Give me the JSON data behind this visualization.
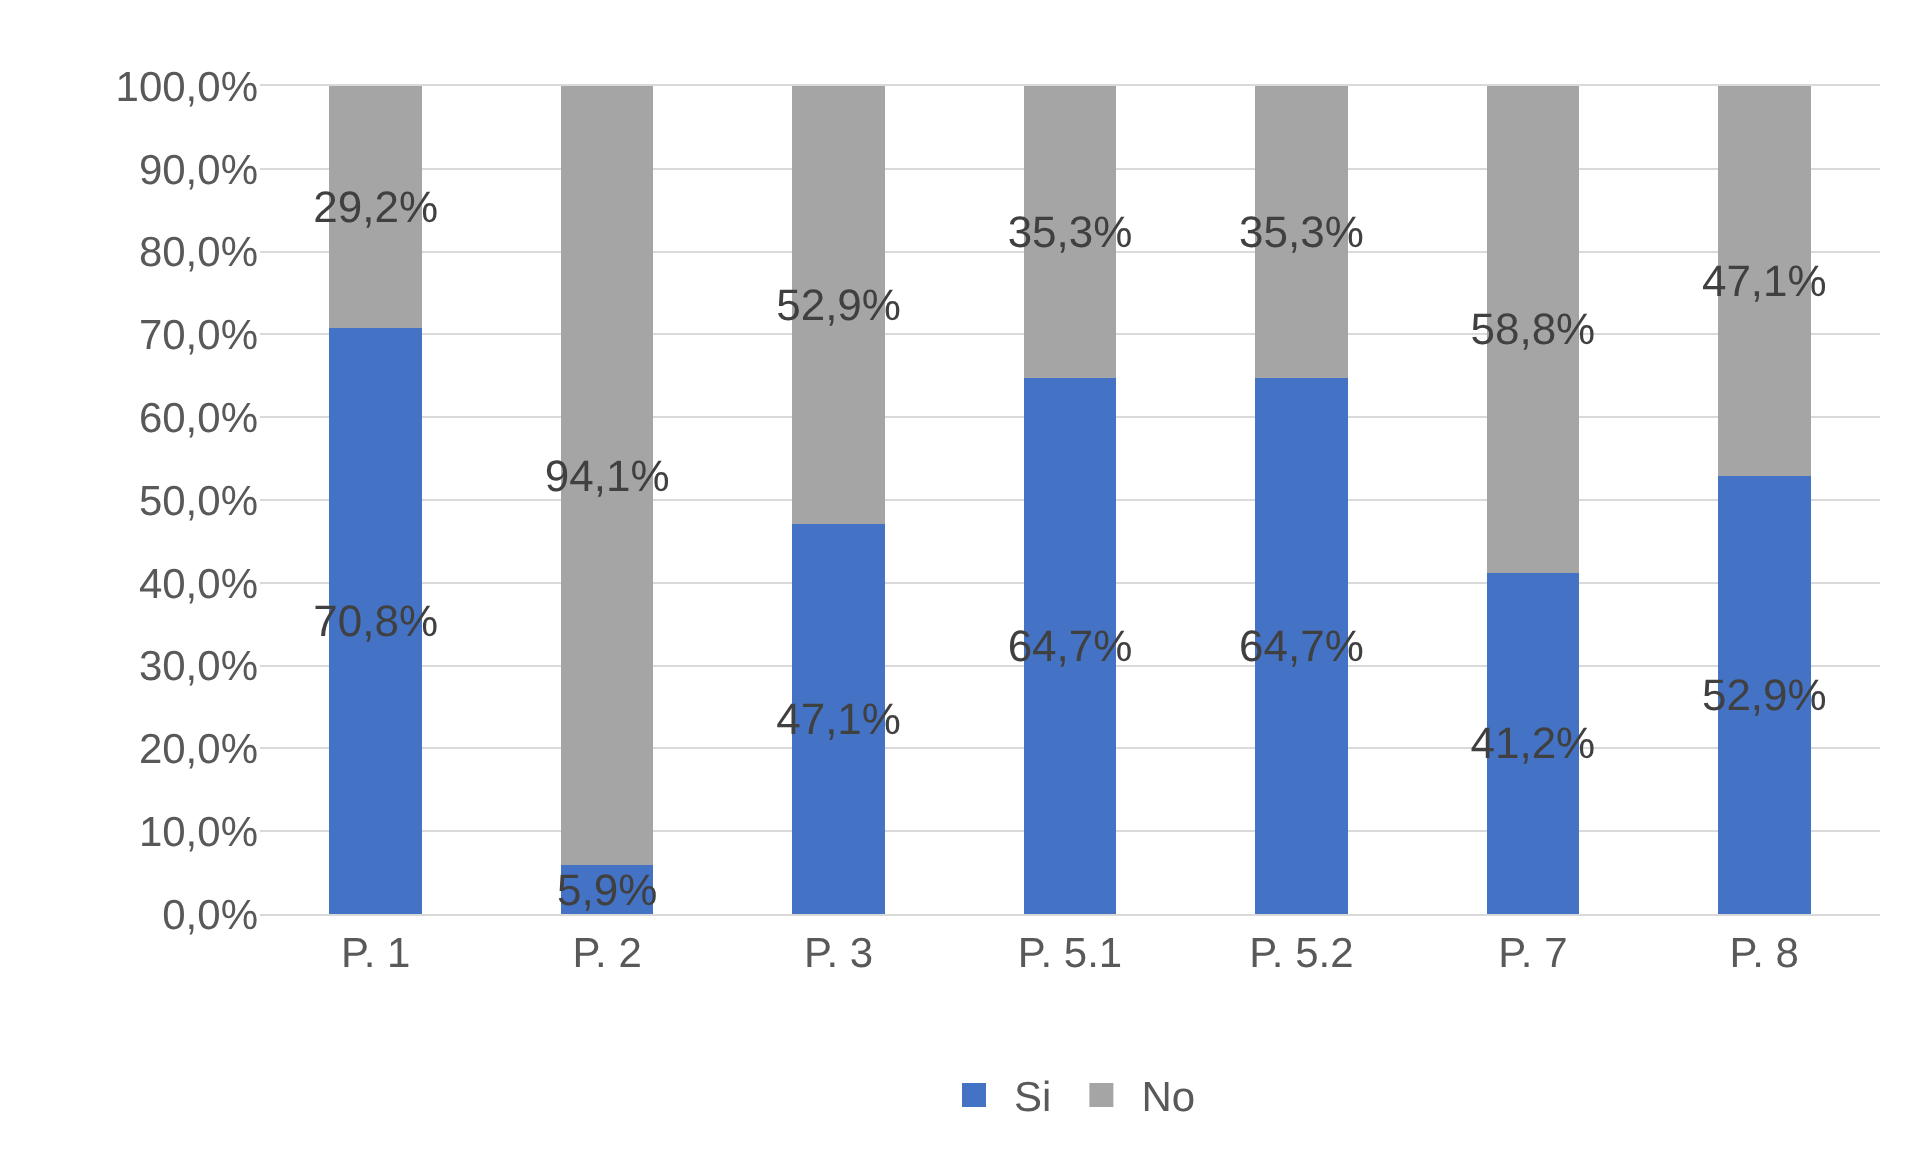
{
  "chart_data": {
    "type": "bar",
    "stacked": true,
    "categories": [
      "P. 1",
      "P. 2",
      "P. 3",
      "P. 5.1",
      "P. 5.2",
      "P. 7",
      "P. 8"
    ],
    "series": [
      {
        "name": "Si",
        "color": "#4472c4",
        "values": [
          70.8,
          5.9,
          47.1,
          64.7,
          64.7,
          41.2,
          52.9
        ],
        "value_labels": [
          "70,8%",
          "5,9%",
          "47,1%",
          "64,7%",
          "64,7%",
          "41,2%",
          "52,9%"
        ]
      },
      {
        "name": "No",
        "color": "#a5a5a5",
        "values": [
          29.2,
          94.1,
          52.9,
          35.3,
          35.3,
          58.8,
          47.1
        ],
        "value_labels": [
          "29,2%",
          "94,1%",
          "52,9%",
          "35,3%",
          "35,3%",
          "58,8%",
          "47,1%"
        ]
      }
    ],
    "ylim": [
      0,
      100
    ],
    "yticks": [
      {
        "value": 0,
        "label": "0,0%"
      },
      {
        "value": 10,
        "label": "10,0%"
      },
      {
        "value": 20,
        "label": "20,0%"
      },
      {
        "value": 30,
        "label": "30,0%"
      },
      {
        "value": 40,
        "label": "40,0%"
      },
      {
        "value": 50,
        "label": "50,0%"
      },
      {
        "value": 60,
        "label": "60,0%"
      },
      {
        "value": 70,
        "label": "70,0%"
      },
      {
        "value": 80,
        "label": "80,0%"
      },
      {
        "value": 90,
        "label": "90,0%"
      },
      {
        "value": 100,
        "label": "100,0%"
      }
    ],
    "grid": "y",
    "legend": "bottom"
  }
}
